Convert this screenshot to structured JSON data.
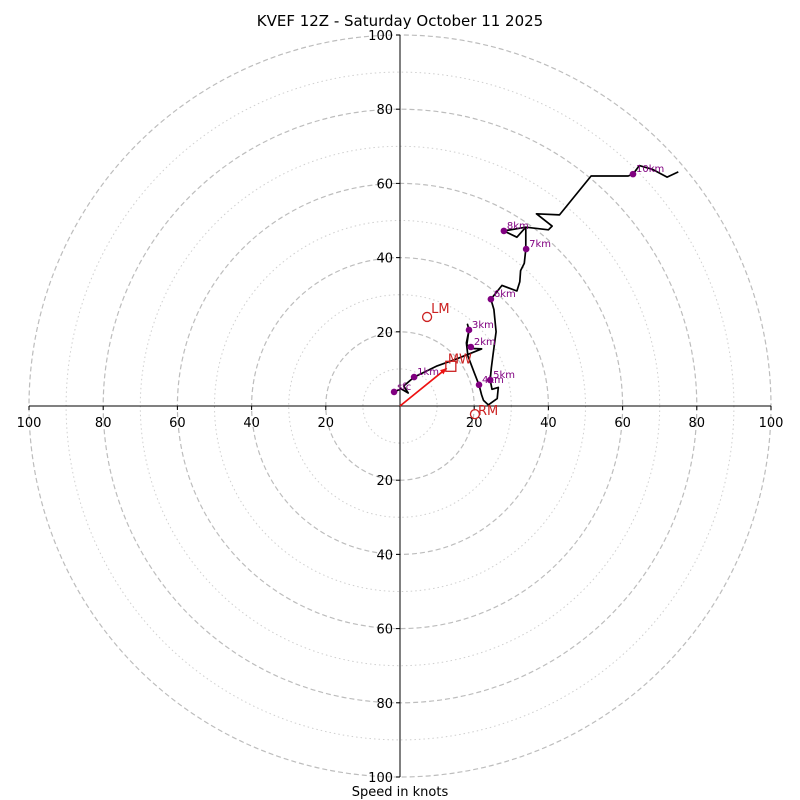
{
  "chart_data": {
    "type": "hodograph",
    "title": "KVEF 12Z - Saturday October 11 2025",
    "xlabel": "Speed in knots",
    "ylabel": "",
    "units": "knots",
    "range": [
      -100,
      100
    ],
    "major_rings": [
      20,
      40,
      60,
      80,
      100
    ],
    "minor_rings": [
      10,
      30,
      50,
      70,
      90
    ],
    "x_tick_labels": [
      "100",
      "80",
      "60",
      "40",
      "20",
      "20",
      "40",
      "60",
      "80",
      "100"
    ],
    "x_tick_values": [
      -100,
      -80,
      -60,
      -40,
      -20,
      20,
      40,
      60,
      80,
      100
    ],
    "y_tick_labels": [
      "100",
      "80",
      "60",
      "40",
      "20",
      "20",
      "40",
      "60",
      "80",
      "100"
    ],
    "y_tick_values": [
      100,
      80,
      60,
      40,
      20,
      -20,
      -40,
      -60,
      -80,
      -100
    ],
    "grid": true,
    "trace": {
      "name": "wind profile",
      "color": "#000000",
      "points": [
        [
          -1.6,
          3.8
        ],
        [
          0.3,
          4.6
        ],
        [
          2.2,
          3.5
        ],
        [
          1.0,
          5.4
        ],
        [
          3.8,
          7.8
        ],
        [
          10.0,
          10.8
        ],
        [
          15.0,
          12.6
        ],
        [
          22.0,
          15.4
        ],
        [
          19.5,
          15.5
        ],
        [
          19.1,
          15.9
        ],
        [
          18.0,
          16.5
        ],
        [
          18.6,
          20.5
        ],
        [
          18.2,
          22.0
        ],
        [
          18.6,
          20.5
        ],
        [
          17.9,
          17.0
        ],
        [
          18.3,
          13.5
        ],
        [
          20.0,
          9.0
        ],
        [
          21.3,
          5.7
        ],
        [
          22.0,
          3.0
        ],
        [
          22.5,
          1.5
        ],
        [
          23.8,
          0.3
        ],
        [
          26.2,
          2.0
        ],
        [
          26.5,
          5.0
        ],
        [
          24.8,
          4.5
        ],
        [
          24.3,
          7.0
        ],
        [
          24.6,
          10.2
        ],
        [
          25.1,
          14.0
        ],
        [
          25.9,
          20.0
        ],
        [
          25.3,
          26.0
        ],
        [
          24.5,
          28.8
        ],
        [
          27.5,
          32.5
        ],
        [
          31.5,
          31.0
        ],
        [
          32.3,
          33.5
        ],
        [
          32.5,
          36.5
        ],
        [
          33.5,
          38.5
        ],
        [
          33.9,
          42.3
        ],
        [
          33.9,
          48.2
        ],
        [
          31.5,
          45.5
        ],
        [
          28.0,
          47.2
        ],
        [
          33.9,
          48.2
        ],
        [
          40.0,
          47.5
        ],
        [
          41.0,
          48.5
        ],
        [
          36.8,
          51.8
        ],
        [
          43.0,
          51.5
        ],
        [
          51.5,
          62.0
        ],
        [
          61.5,
          62.0
        ],
        [
          62.8,
          62.5
        ],
        [
          64.5,
          64.8
        ],
        [
          68.0,
          63.8
        ],
        [
          72.0,
          61.7
        ],
        [
          75.0,
          63.1
        ]
      ]
    },
    "height_markers": [
      {
        "label": "sfc",
        "u": -1.6,
        "v": 3.8
      },
      {
        "label": "1km",
        "u": 3.8,
        "v": 7.8
      },
      {
        "label": "2km",
        "u": 19.1,
        "v": 15.9
      },
      {
        "label": "3km",
        "u": 18.6,
        "v": 20.5
      },
      {
        "label": "4km",
        "u": 21.3,
        "v": 5.7
      },
      {
        "label": "5km",
        "u": 24.3,
        "v": 7.0
      },
      {
        "label": "6km",
        "u": 24.5,
        "v": 28.8
      },
      {
        "label": "7km",
        "u": 34.0,
        "v": 42.3
      },
      {
        "label": "8km",
        "u": 28.0,
        "v": 47.2
      },
      {
        "label": "10km",
        "u": 62.8,
        "v": 62.5
      }
    ],
    "marker_color": "#800080",
    "storm_motion": {
      "color": "#cc2222",
      "LM": {
        "label": "LM",
        "u": 7.3,
        "v": 24.0
      },
      "RM": {
        "label": "RM",
        "u": 20.2,
        "v": -2.2
      },
      "MW": {
        "label": "MW",
        "u": 13.7,
        "v": 10.7
      },
      "vector": {
        "from": [
          0,
          0
        ],
        "to": [
          12.6,
          10.2
        ]
      }
    }
  }
}
